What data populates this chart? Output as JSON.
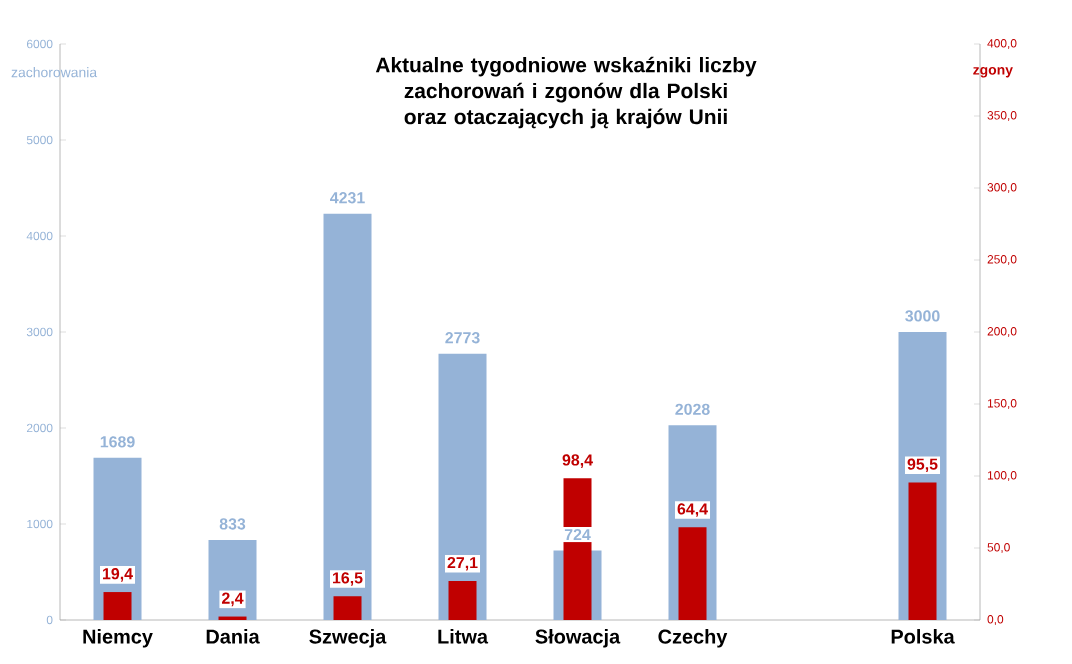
{
  "chart_data": {
    "type": "bar",
    "title": "Aktualne tygodniowe wskaźniki liczby zachorowań i zgonów dla Polski oraz otaczających ją krajów Unii",
    "ylabel": "zachorowania",
    "y2label": "zgony",
    "categories": [
      "Niemcy",
      "Dania",
      "Szwecja",
      "Litwa",
      "Słowacja",
      "Czechy",
      null,
      "Polska"
    ],
    "series": [
      {
        "color": "#95b3d7",
        "values": [
          1689,
          833,
          4231,
          2773,
          724,
          2028,
          null,
          3000
        ],
        "value_labels": [
          "1689",
          "833",
          "4231",
          "2773",
          "724",
          "2028",
          null,
          "3000"
        ]
      },
      {
        "color": "#c00000",
        "axis": "y2",
        "values": [
          19.4,
          2.4,
          16.5,
          27.1,
          98.4,
          64.4,
          null,
          95.5
        ],
        "value_labels": [
          "19,4",
          "2,4",
          "16,5",
          "27,1",
          "98,4",
          "64,4",
          null,
          "95,5"
        ]
      }
    ],
    "ylim": [
      0,
      6000
    ],
    "yticks": [
      0,
      1000,
      2000,
      3000,
      4000,
      5000,
      6000
    ],
    "y2lim": [
      0,
      400
    ],
    "y2ticks": [
      {
        "value": 0,
        "label": "0,0"
      },
      {
        "value": 50,
        "label": "50,0"
      },
      {
        "value": 100,
        "label": "100,0"
      },
      {
        "value": 150,
        "label": "150,0"
      },
      {
        "value": 200,
        "label": "200,0"
      },
      {
        "value": 250,
        "label": "250,0"
      },
      {
        "value": 300,
        "label": "300,0"
      },
      {
        "value": 350,
        "label": "350,0"
      },
      {
        "value": 400,
        "label": "400,0"
      }
    ]
  }
}
